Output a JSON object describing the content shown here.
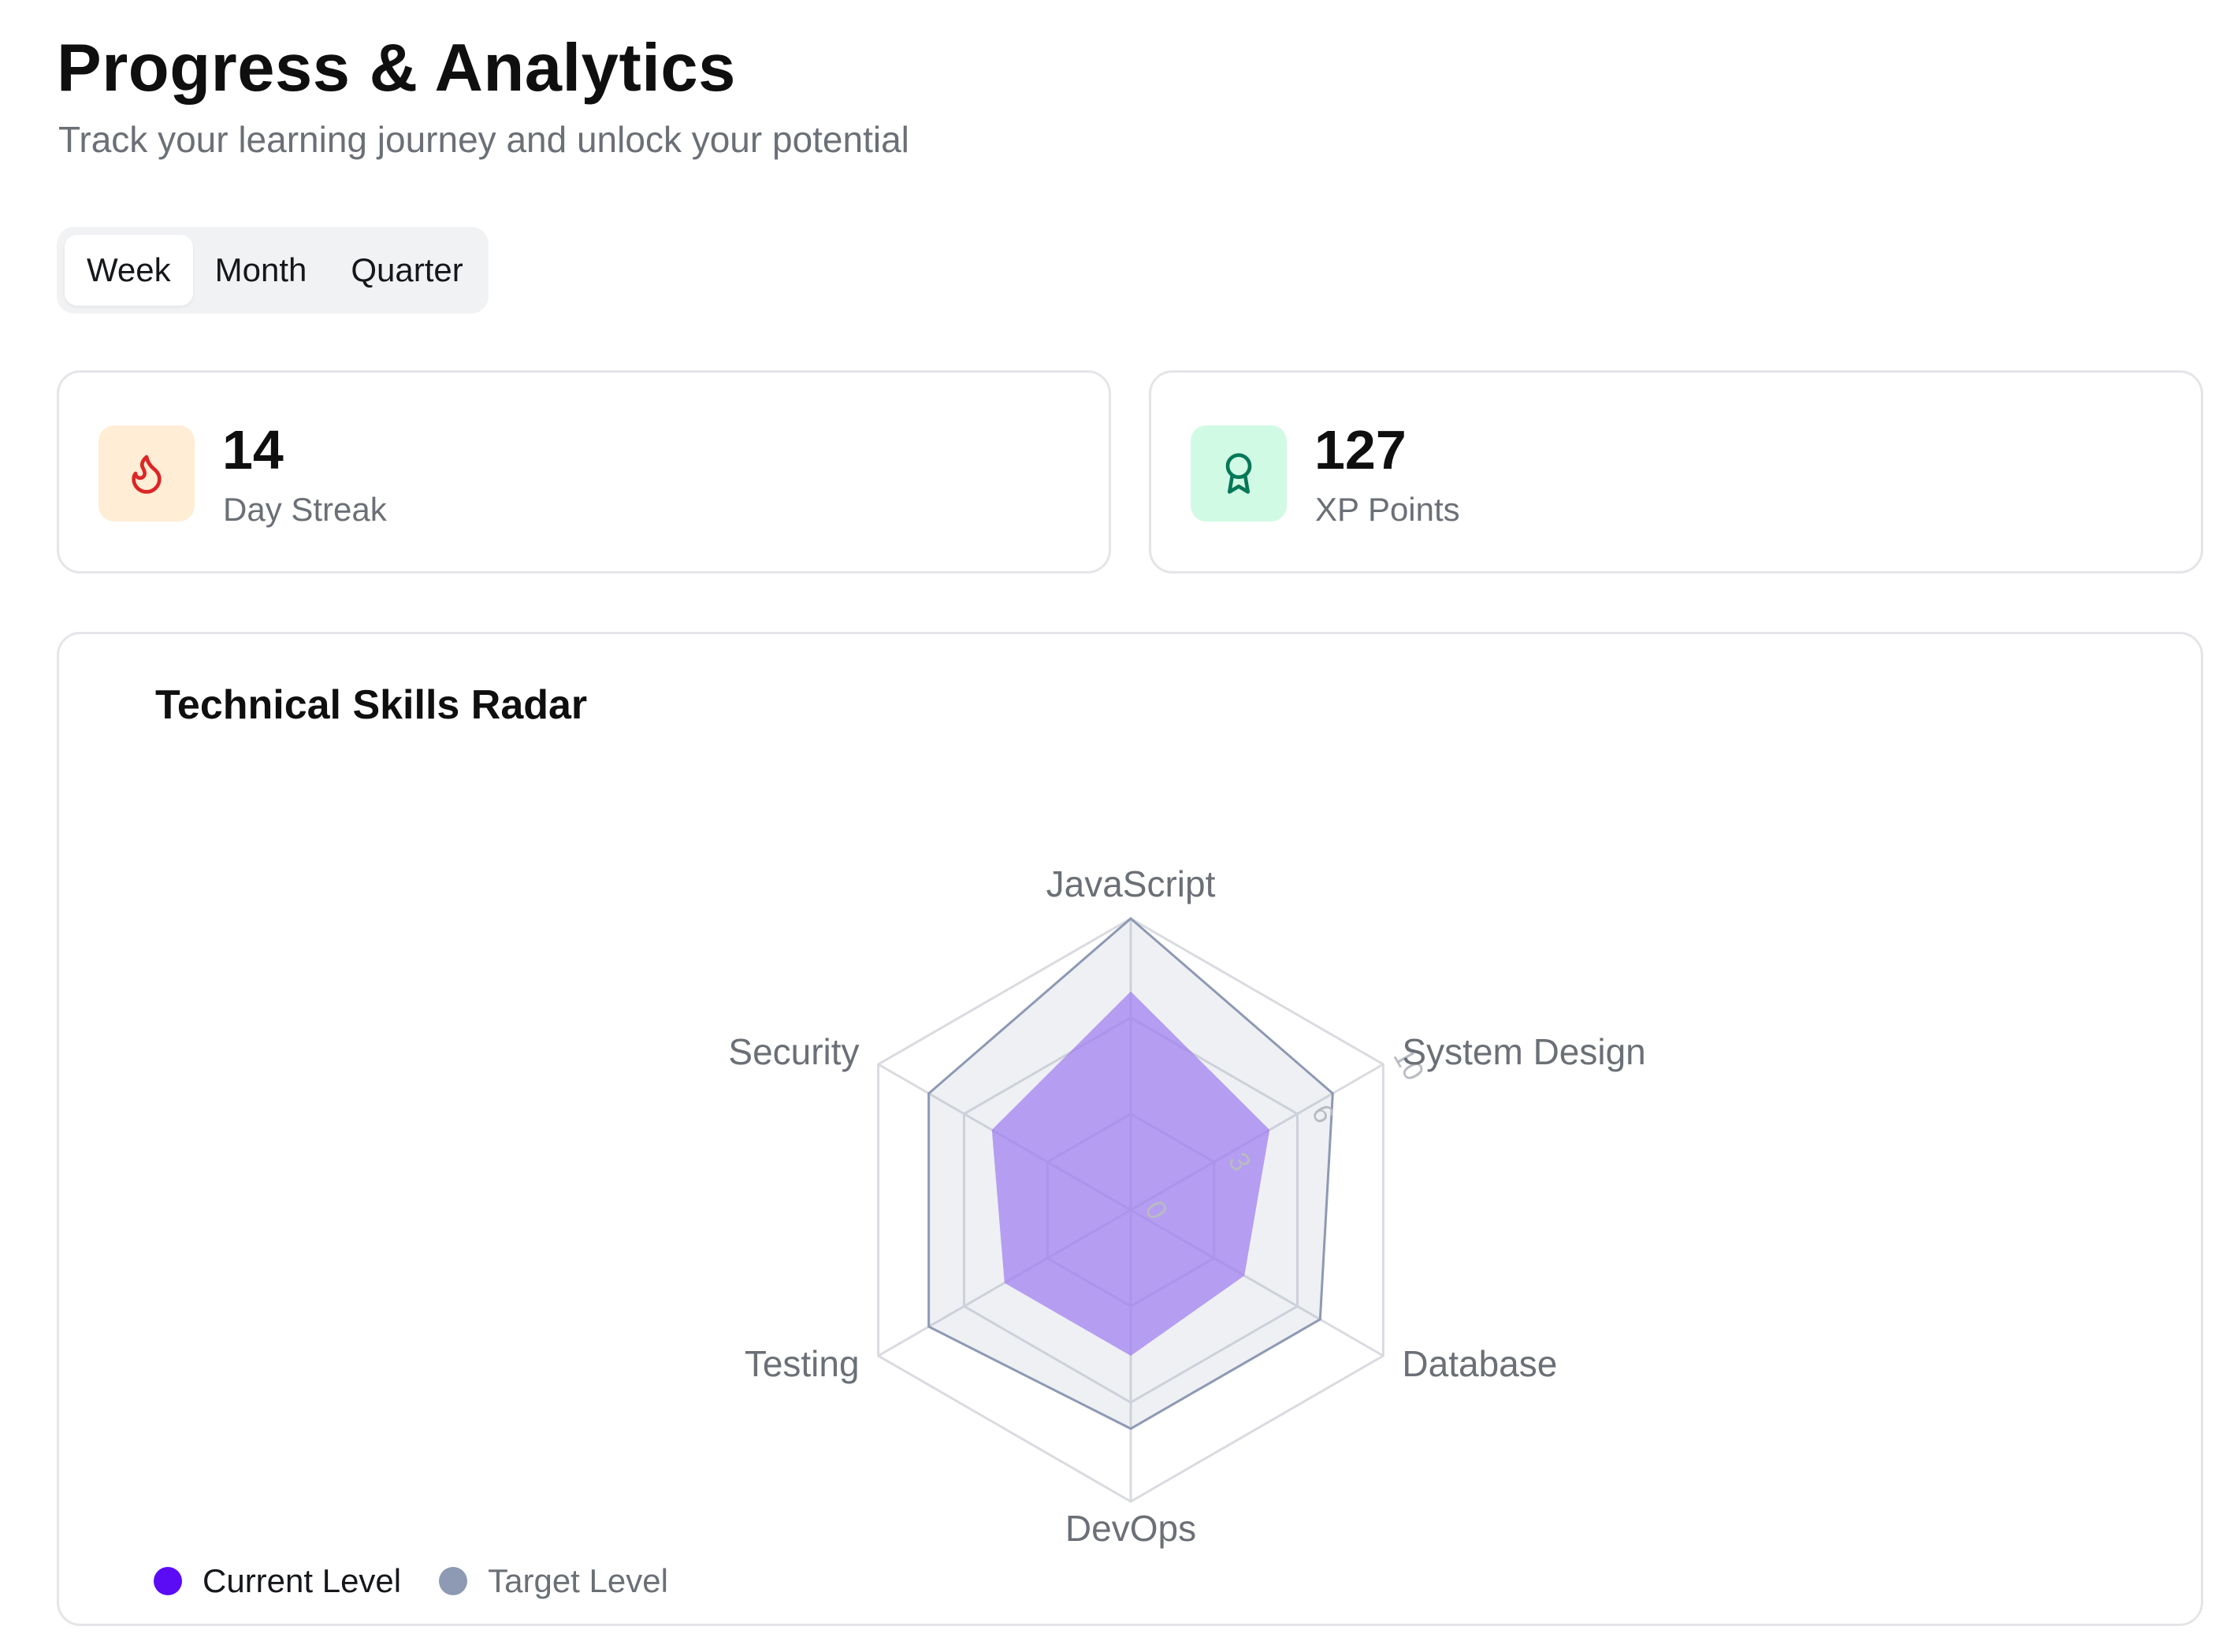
{
  "header": {
    "title": "Progress & Analytics",
    "subtitle": "Track your learning journey and unlock your potential"
  },
  "period_tabs": [
    {
      "label": "Week",
      "active": true
    },
    {
      "label": "Month",
      "active": false
    },
    {
      "label": "Quarter",
      "active": false
    }
  ],
  "stats": {
    "streak": {
      "value": "14",
      "label": "Day Streak",
      "icon": "flame-icon",
      "icon_color": "#dc2626",
      "icon_bg": "#ffedd5"
    },
    "xp": {
      "value": "127",
      "label": "XP Points",
      "icon": "award-icon",
      "icon_color": "#047857",
      "icon_bg": "#d1fae5"
    }
  },
  "radar": {
    "title": "Technical Skills Radar",
    "legend": [
      {
        "label": "Current Level",
        "color": "#5b0cf5"
      },
      {
        "label": "Target Level",
        "color": "#8e99b3"
      }
    ]
  },
  "chart_data": {
    "type": "radar",
    "title": "Technical Skills Radar",
    "categories": [
      "JavaScript",
      "System Design",
      "Database",
      "DevOps",
      "Testing",
      "Security"
    ],
    "series": [
      {
        "name": "Current Level",
        "values": [
          7.5,
          5.5,
          4.5,
          5,
          5,
          5.5
        ],
        "color": "#b49cf2"
      },
      {
        "name": "Target Level",
        "values": [
          10,
          8,
          7.5,
          7.5,
          8,
          8
        ],
        "color": "#8e99b3"
      }
    ],
    "r_ticks": [
      "0",
      "3",
      "6",
      "10"
    ],
    "rlim": [
      0,
      10
    ],
    "grid": true,
    "legend_position": "bottom-left"
  }
}
